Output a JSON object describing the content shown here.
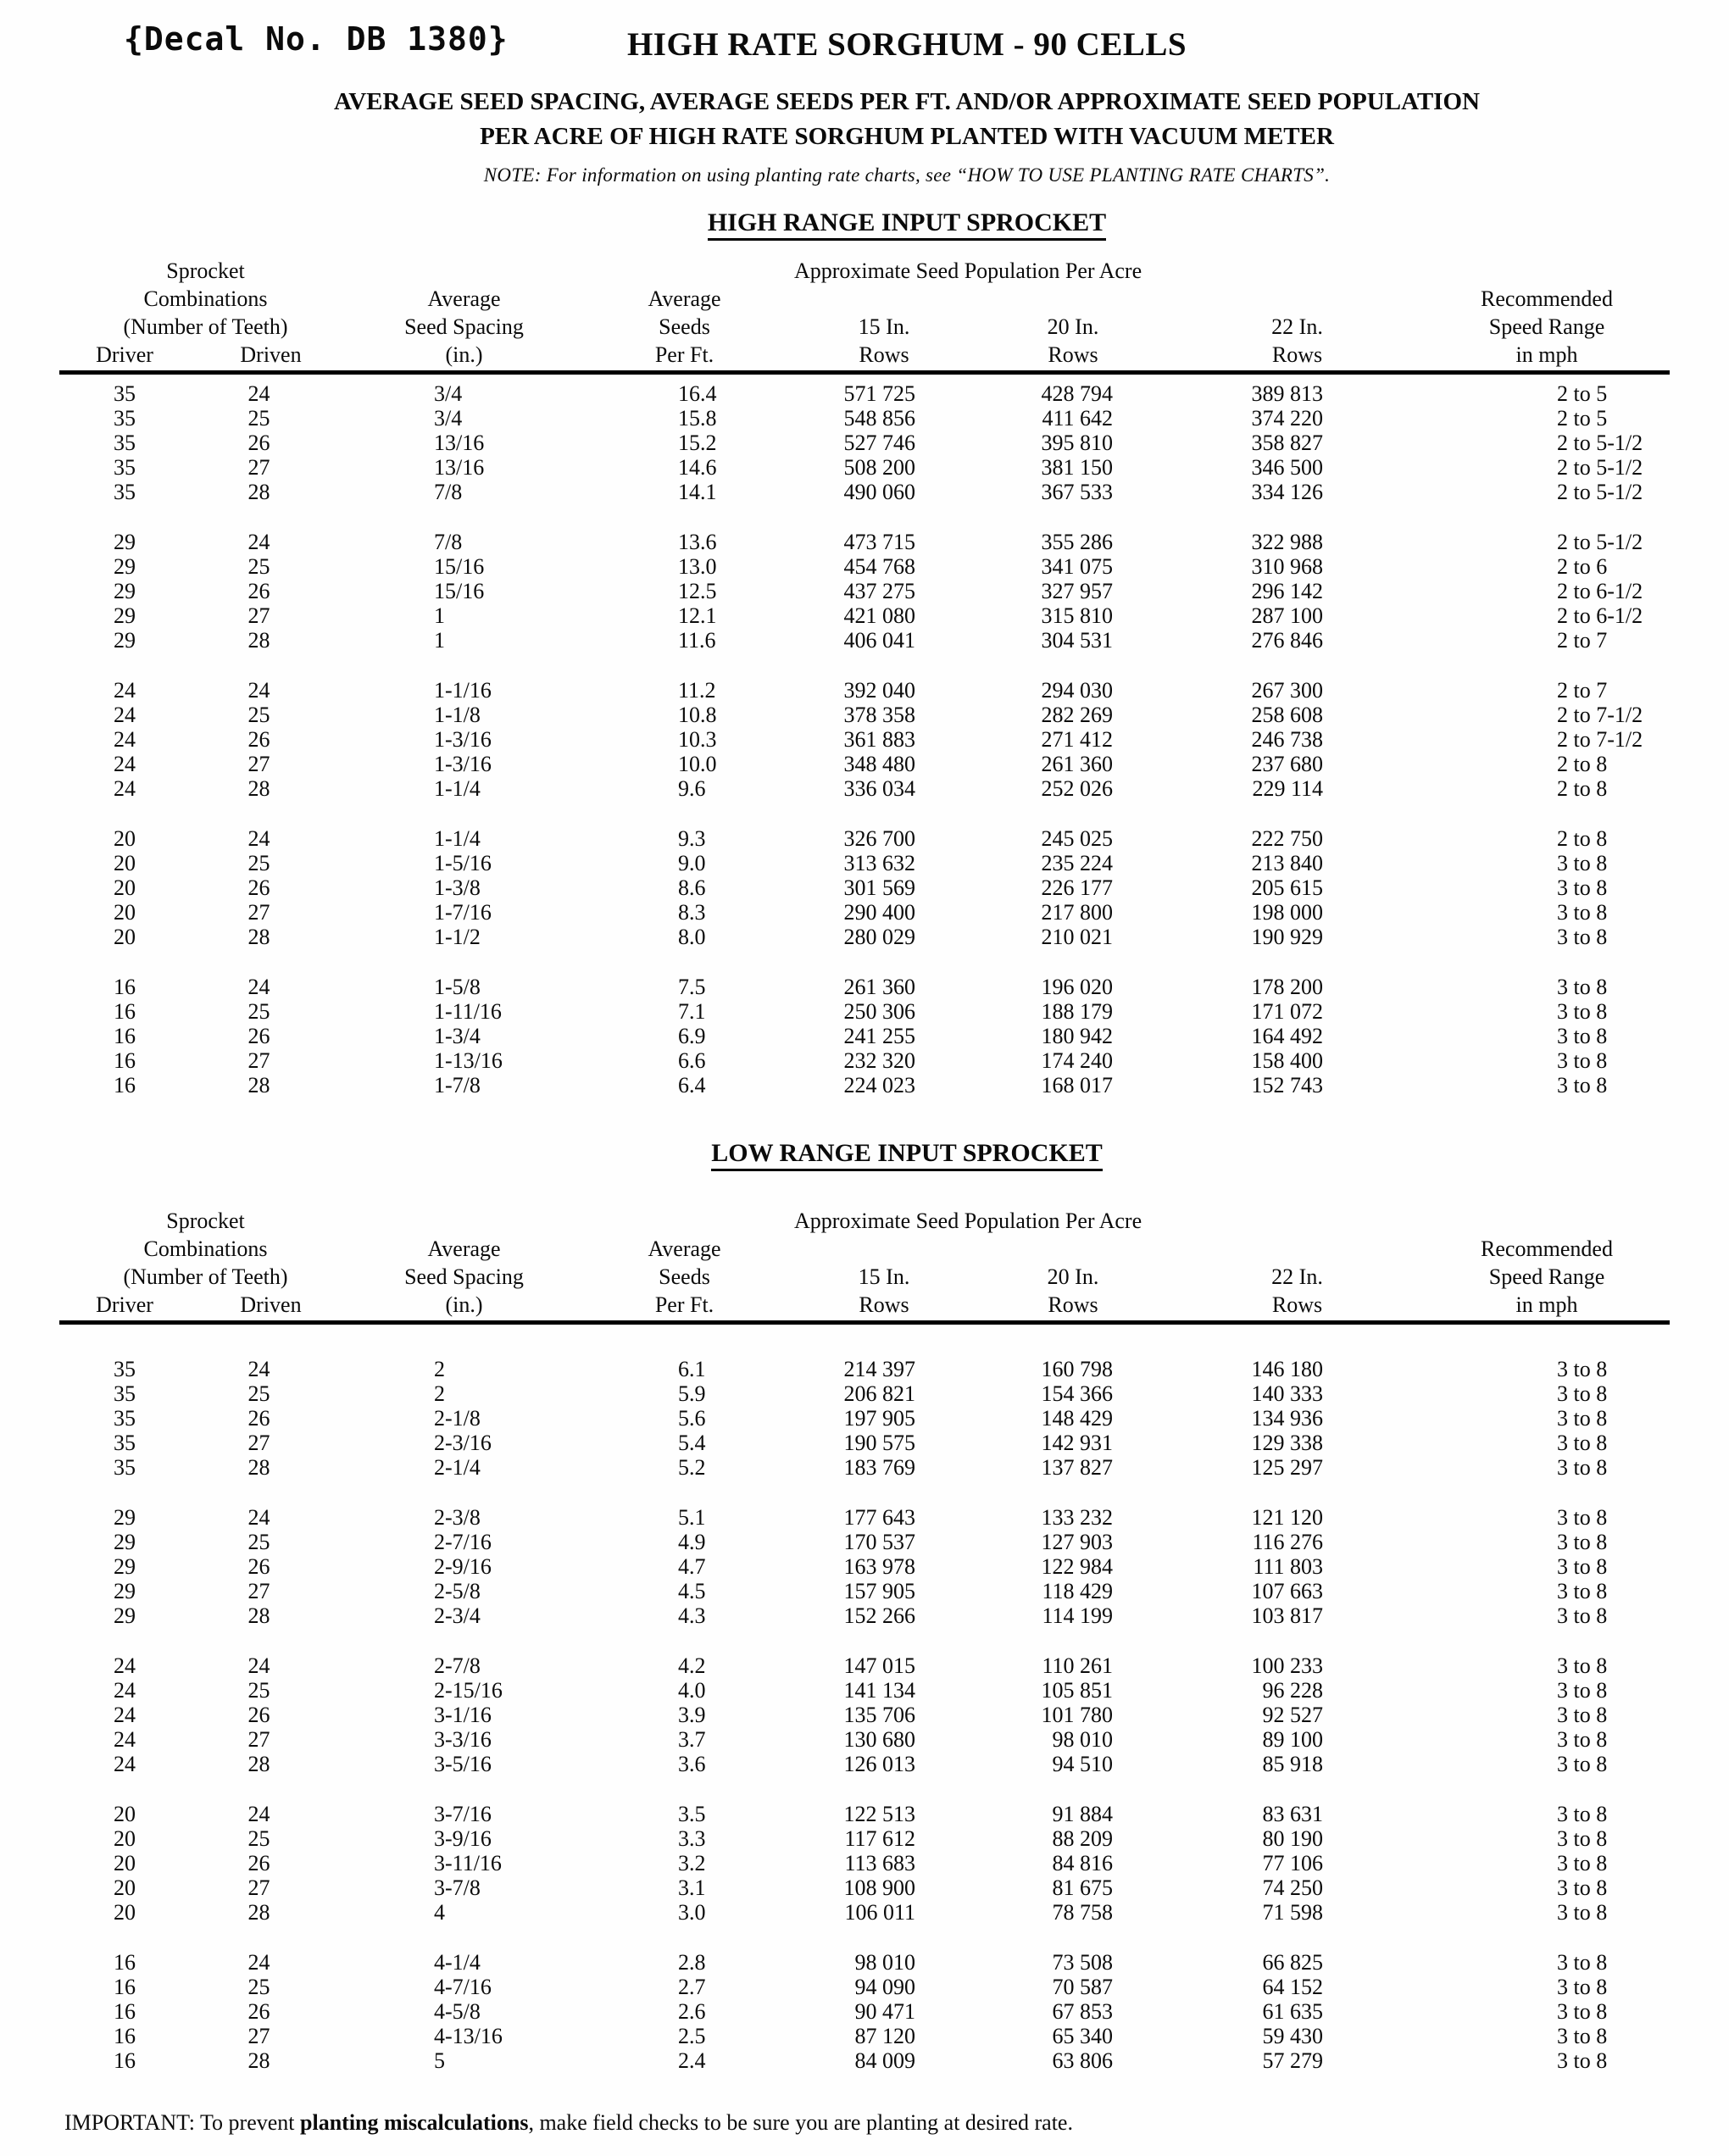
{
  "page": {
    "decal": "{Decal No. DB 1380}",
    "title": "HIGH RATE SORGHUM - 90 CELLS",
    "subtitle_line1": "AVERAGE SEED SPACING, AVERAGE SEEDS PER FT. AND/OR APPROXIMATE SEED POPULATION",
    "subtitle_line2": "PER ACRE OF HIGH RATE SORGHUM PLANTED WITH VACUUM METER",
    "note": "NOTE: For information on using planting rate charts, see “HOW TO USE PLANTING RATE CHARTS”.",
    "important": {
      "prefix": "IMPORTANT: To prevent ",
      "bold": "planting miscalculations",
      "suffix": ", make field checks to be sure you are planting at desired rate."
    }
  },
  "table_header": {
    "line1_left": "Sprocket",
    "line2_left": "Combinations",
    "line3_left": "(Number of Teeth)",
    "driver": "Driver",
    "driven": "Driven",
    "spacing_l1": "Average",
    "spacing_l2": "Seed Spacing",
    "spacing_l3": "(in.)",
    "seeds_l1": "Average",
    "seeds_l2": "Seeds",
    "seeds_l3": "Per Ft.",
    "population": "Approximate Seed Population Per Acre",
    "in15": "15 In.",
    "in20": "20 In.",
    "in22": "22 In.",
    "rows_label": "Rows",
    "speed_l1": "Recommended",
    "speed_l2": "Speed Range",
    "speed_l3": "in mph"
  },
  "high_range": {
    "heading": "HIGH RANGE INPUT SPROCKET",
    "rows": [
      [
        "35",
        "24",
        "3/4",
        "16.4",
        "571 725",
        "428 794",
        "389 813",
        "2 to 5"
      ],
      [
        "35",
        "25",
        "3/4",
        "15.8",
        "548 856",
        "411 642",
        "374 220",
        "2 to 5"
      ],
      [
        "35",
        "26",
        "13/16",
        "15.2",
        "527 746",
        "395 810",
        "358 827",
        "2 to 5-1/2"
      ],
      [
        "35",
        "27",
        "13/16",
        "14.6",
        "508 200",
        "381 150",
        "346 500",
        "2 to 5-1/2"
      ],
      [
        "35",
        "28",
        "7/8",
        "14.1",
        "490 060",
        "367 533",
        "334 126",
        "2 to 5-1/2"
      ],
      [
        "29",
        "24",
        "7/8",
        "13.6",
        "473 715",
        "355 286",
        "322 988",
        "2 to 5-1/2"
      ],
      [
        "29",
        "25",
        "15/16",
        "13.0",
        "454 768",
        "341 075",
        "310 968",
        "2 to 6"
      ],
      [
        "29",
        "26",
        "15/16",
        "12.5",
        "437 275",
        "327 957",
        "296 142",
        "2 to 6-1/2"
      ],
      [
        "29",
        "27",
        "1",
        "12.1",
        "421 080",
        "315 810",
        "287 100",
        "2 to 6-1/2"
      ],
      [
        "29",
        "28",
        "1",
        "11.6",
        "406 041",
        "304 531",
        "276 846",
        "2 to 7"
      ],
      [
        "24",
        "24",
        "1-1/16",
        "11.2",
        "392 040",
        "294 030",
        "267 300",
        "2 to 7"
      ],
      [
        "24",
        "25",
        "1-1/8",
        "10.8",
        "378 358",
        "282 269",
        "258 608",
        "2 to 7-1/2"
      ],
      [
        "24",
        "26",
        "1-3/16",
        "10.3",
        "361 883",
        "271 412",
        "246 738",
        "2 to 7-1/2"
      ],
      [
        "24",
        "27",
        "1-3/16",
        "10.0",
        "348 480",
        "261 360",
        "237 680",
        "2 to 8"
      ],
      [
        "24",
        "28",
        "1-1/4",
        "9.6",
        "336 034",
        "252 026",
        "229 114",
        "2 to 8"
      ],
      [
        "20",
        "24",
        "1-1/4",
        "9.3",
        "326 700",
        "245 025",
        "222 750",
        "2 to 8"
      ],
      [
        "20",
        "25",
        "1-5/16",
        "9.0",
        "313 632",
        "235 224",
        "213 840",
        "3 to 8"
      ],
      [
        "20",
        "26",
        "1-3/8",
        "8.6",
        "301 569",
        "226 177",
        "205 615",
        "3 to 8"
      ],
      [
        "20",
        "27",
        "1-7/16",
        "8.3",
        "290 400",
        "217 800",
        "198 000",
        "3 to 8"
      ],
      [
        "20",
        "28",
        "1-1/2",
        "8.0",
        "280 029",
        "210 021",
        "190 929",
        "3 to 8"
      ],
      [
        "16",
        "24",
        "1-5/8",
        "7.5",
        "261 360",
        "196 020",
        "178 200",
        "3 to 8"
      ],
      [
        "16",
        "25",
        "1-11/16",
        "7.1",
        "250 306",
        "188 179",
        "171 072",
        "3 to 8"
      ],
      [
        "16",
        "26",
        "1-3/4",
        "6.9",
        "241 255",
        "180 942",
        "164 492",
        "3 to 8"
      ],
      [
        "16",
        "27",
        "1-13/16",
        "6.6",
        "232 320",
        "174 240",
        "158 400",
        "3 to 8"
      ],
      [
        "16",
        "28",
        "1-7/8",
        "6.4",
        "224 023",
        "168 017",
        "152 743",
        "3 to 8"
      ]
    ]
  },
  "low_range": {
    "heading": "LOW RANGE INPUT SPROCKET",
    "rows": [
      [
        "35",
        "24",
        "2",
        "6.1",
        "214 397",
        "160 798",
        "146 180",
        "3 to 8"
      ],
      [
        "35",
        "25",
        "2",
        "5.9",
        "206 821",
        "154 366",
        "140 333",
        "3 to 8"
      ],
      [
        "35",
        "26",
        "2-1/8",
        "5.6",
        "197 905",
        "148 429",
        "134 936",
        "3 to 8"
      ],
      [
        "35",
        "27",
        "2-3/16",
        "5.4",
        "190 575",
        "142 931",
        "129 338",
        "3 to 8"
      ],
      [
        "35",
        "28",
        "2-1/4",
        "5.2",
        "183 769",
        "137 827",
        "125 297",
        "3 to 8"
      ],
      [
        "29",
        "24",
        "2-3/8",
        "5.1",
        "177 643",
        "133 232",
        "121 120",
        "3 to 8"
      ],
      [
        "29",
        "25",
        "2-7/16",
        "4.9",
        "170 537",
        "127 903",
        "116 276",
        "3 to 8"
      ],
      [
        "29",
        "26",
        "2-9/16",
        "4.7",
        "163 978",
        "122 984",
        "111 803",
        "3 to 8"
      ],
      [
        "29",
        "27",
        "2-5/8",
        "4.5",
        "157 905",
        "118 429",
        "107 663",
        "3 to 8"
      ],
      [
        "29",
        "28",
        "2-3/4",
        "4.3",
        "152 266",
        "114 199",
        "103 817",
        "3 to 8"
      ],
      [
        "24",
        "24",
        "2-7/8",
        "4.2",
        "147 015",
        "110 261",
        "100 233",
        "3 to 8"
      ],
      [
        "24",
        "25",
        "2-15/16",
        "4.0",
        "141 134",
        "105 851",
        "96 228",
        "3 to 8"
      ],
      [
        "24",
        "26",
        "3-1/16",
        "3.9",
        "135 706",
        "101 780",
        "92 527",
        "3 to 8"
      ],
      [
        "24",
        "27",
        "3-3/16",
        "3.7",
        "130 680",
        "98 010",
        "89 100",
        "3 to 8"
      ],
      [
        "24",
        "28",
        "3-5/16",
        "3.6",
        "126 013",
        "94 510",
        "85 918",
        "3 to 8"
      ],
      [
        "20",
        "24",
        "3-7/16",
        "3.5",
        "122 513",
        "91 884",
        "83 631",
        "3 to 8"
      ],
      [
        "20",
        "25",
        "3-9/16",
        "3.3",
        "117 612",
        "88 209",
        "80 190",
        "3 to 8"
      ],
      [
        "20",
        "26",
        "3-11/16",
        "3.2",
        "113 683",
        "84 816",
        "77 106",
        "3 to 8"
      ],
      [
        "20",
        "27",
        "3-7/8",
        "3.1",
        "108 900",
        "81 675",
        "74 250",
        "3 to 8"
      ],
      [
        "20",
        "28",
        "4",
        "3.0",
        "106 011",
        "78 758",
        "71 598",
        "3 to 8"
      ],
      [
        "16",
        "24",
        "4-1/4",
        "2.8",
        "98 010",
        "73 508",
        "66 825",
        "3 to 8"
      ],
      [
        "16",
        "25",
        "4-7/16",
        "2.7",
        "94 090",
        "70 587",
        "64 152",
        "3 to 8"
      ],
      [
        "16",
        "26",
        "4-5/8",
        "2.6",
        "90 471",
        "67 853",
        "61 635",
        "3 to 8"
      ],
      [
        "16",
        "27",
        "4-13/16",
        "2.5",
        "87 120",
        "65 340",
        "59 430",
        "3 to 8"
      ],
      [
        "16",
        "28",
        "5",
        "2.4",
        "84 009",
        "63 806",
        "57 279",
        "3 to 8"
      ]
    ]
  }
}
